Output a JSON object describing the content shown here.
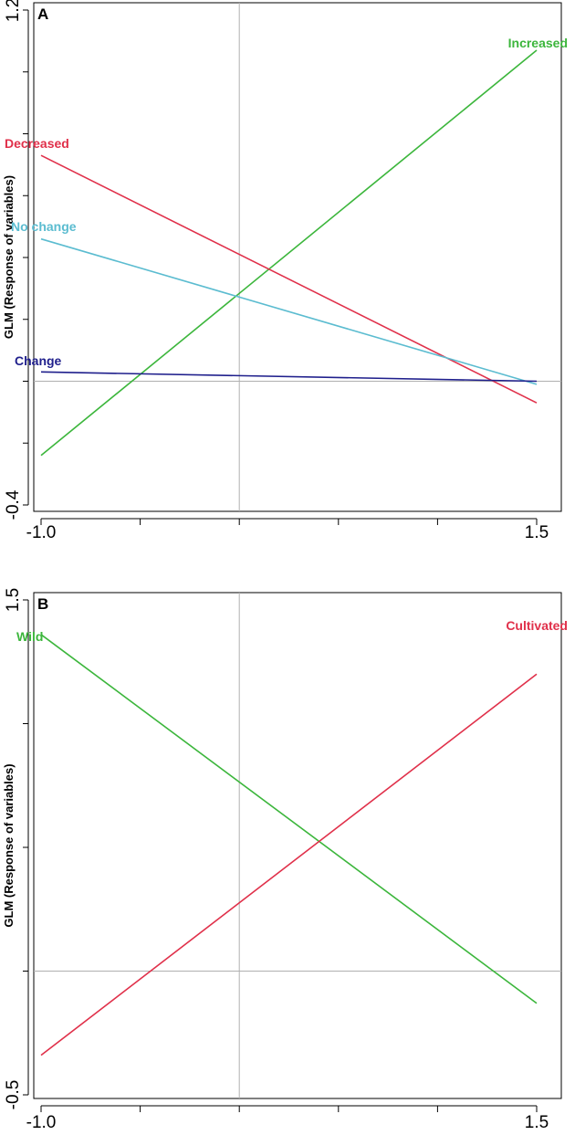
{
  "chart_data": [
    {
      "type": "line",
      "panel": "A",
      "ylabel": "GLM (Response of variables)",
      "xlabel": "",
      "xlim": [
        -1.0,
        1.5
      ],
      "ylim": [
        -0.4,
        1.2
      ],
      "x_tick_labels": [
        "-1.0",
        "1.5"
      ],
      "y_tick_labels": [
        "-0.4",
        "1.2"
      ],
      "x_minor_ticks": [
        -1.0,
        -0.5,
        0.0,
        0.5,
        1.0,
        1.5
      ],
      "y_minor_ticks": [
        -0.4,
        -0.2,
        0.0,
        0.2,
        0.4,
        0.6,
        0.8,
        1.0,
        1.2
      ],
      "ref_x": 0.0,
      "ref_y": 0.0,
      "series": [
        {
          "name": "Increased",
          "color": "#3cb63c",
          "x": [
            -1.0,
            1.5
          ],
          "y": [
            -0.24,
            1.07
          ],
          "label_pos": "end"
        },
        {
          "name": "Decreased",
          "color": "#e0304a",
          "x": [
            -1.0,
            1.5
          ],
          "y": [
            0.73,
            -0.07
          ],
          "label_pos": "start"
        },
        {
          "name": "No change",
          "color": "#5bbcd0",
          "x": [
            -1.0,
            1.5
          ],
          "y": [
            0.46,
            -0.01
          ],
          "label_pos": "start"
        },
        {
          "name": "Change",
          "color": "#1f1f8c",
          "x": [
            -1.0,
            1.5
          ],
          "y": [
            0.03,
            0.0
          ],
          "label_pos": "start"
        }
      ]
    },
    {
      "type": "line",
      "panel": "B",
      "ylabel": "GLM (Response of variables)",
      "xlabel": "",
      "xlim": [
        -1.0,
        1.5
      ],
      "ylim": [
        -0.5,
        1.5
      ],
      "x_tick_labels": [
        "-1.0",
        "1.5"
      ],
      "y_tick_labels": [
        "-0.5",
        "1.5"
      ],
      "x_minor_ticks": [
        -1.0,
        -0.5,
        0.0,
        0.5,
        1.0,
        1.5
      ],
      "y_minor_ticks": [
        -0.5,
        0.0,
        0.5,
        1.0,
        1.5
      ],
      "ref_x": 0.0,
      "ref_y": 0.0,
      "series": [
        {
          "name": "Wild",
          "color": "#3cb63c",
          "x": [
            -1.0,
            1.5
          ],
          "y": [
            1.36,
            -0.13
          ],
          "label_pos": "start"
        },
        {
          "name": "Cultivated",
          "color": "#e0304a",
          "x": [
            -1.0,
            1.5
          ],
          "y": [
            -0.34,
            1.2
          ],
          "label_pos": "end"
        }
      ]
    }
  ]
}
